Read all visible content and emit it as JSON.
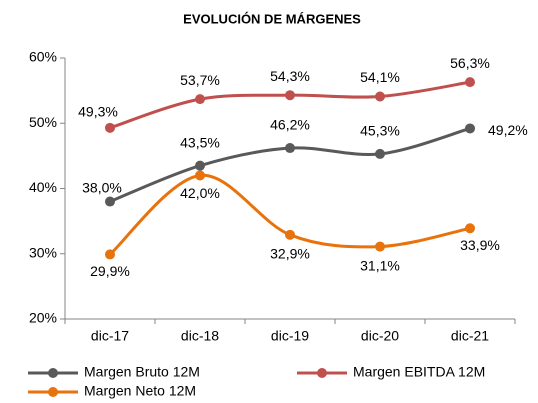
{
  "chart_data": {
    "type": "line",
    "title": "EVOLUCIÓN DE MÁRGENES",
    "categories": [
      "dic-17",
      "dic-18",
      "dic-19",
      "dic-20",
      "dic-21"
    ],
    "series": [
      {
        "name": "Margen Bruto 12M",
        "color": "#595959",
        "values": [
          38.0,
          43.5,
          46.2,
          45.3,
          49.2
        ],
        "value_labels": [
          "38,0%",
          "43,5%",
          "46,2%",
          "45,3%",
          "49,2%"
        ]
      },
      {
        "name": "Margen EBITDA 12M",
        "color": "#c0504d",
        "values": [
          49.3,
          53.7,
          54.3,
          54.1,
          56.3
        ],
        "value_labels": [
          "49,3%",
          "53,7%",
          "54,3%",
          "54,1%",
          "56,3%"
        ]
      },
      {
        "name": "Margen Neto 12M",
        "color": "#e8720c",
        "values": [
          29.9,
          42.0,
          32.9,
          31.1,
          33.9
        ],
        "value_labels": [
          "29,9%",
          "42,0%",
          "32,9%",
          "31,1%",
          "33,9%"
        ]
      }
    ],
    "ylim": [
      20,
      60
    ],
    "yticks": [
      {
        "value": 20,
        "label": "20%"
      },
      {
        "value": 30,
        "label": "30%"
      },
      {
        "value": 40,
        "label": "40%"
      },
      {
        "value": 50,
        "label": "50%"
      },
      {
        "value": 60,
        "label": "60%"
      }
    ],
    "smooth": true
  }
}
